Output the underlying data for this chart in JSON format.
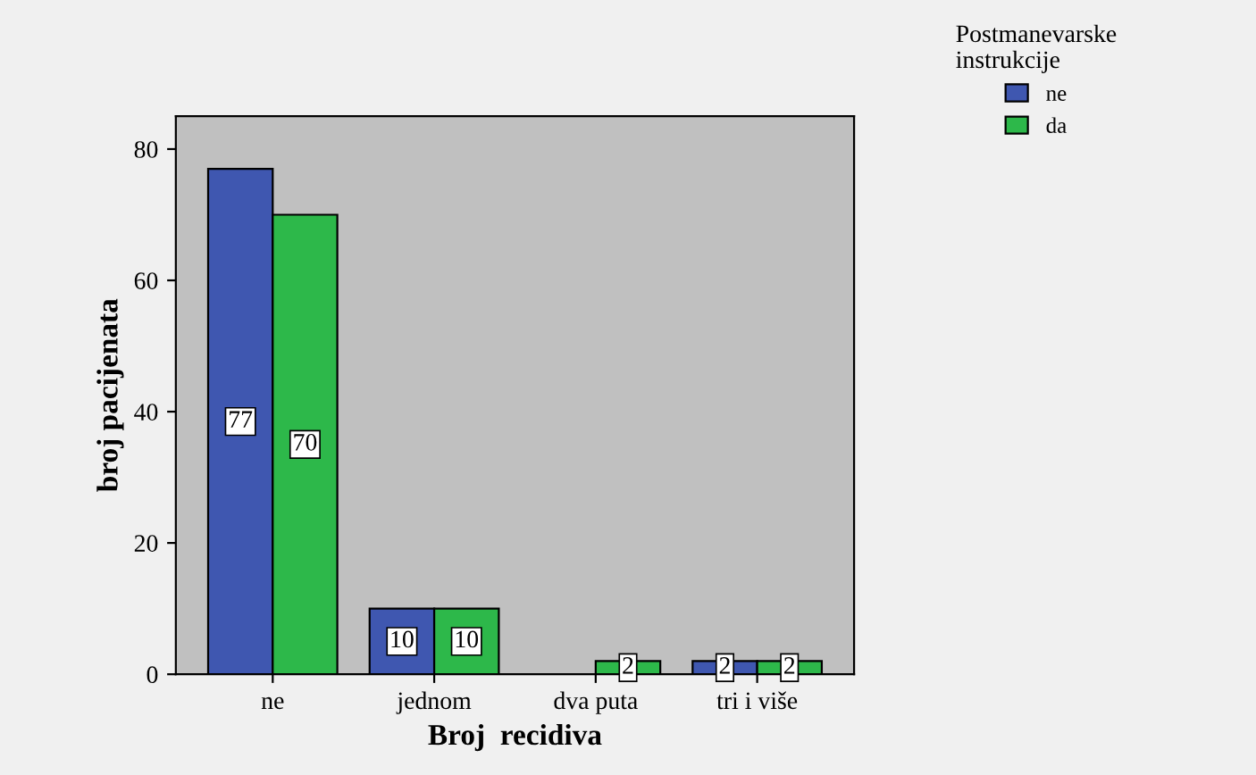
{
  "chart_data": {
    "type": "bar",
    "xlabel": "Broj  recidiva",
    "ylabel": "broj pacijenata",
    "legend_title": "Postmanevarske\ninstrukcije",
    "categories": [
      "ne",
      "jednom",
      "dva puta",
      "tri i više"
    ],
    "series": [
      {
        "name": "ne",
        "color": "#3f57b0",
        "values": [
          77,
          10,
          null,
          2
        ]
      },
      {
        "name": "da",
        "color": "#2db84a",
        "values": [
          70,
          10,
          2,
          2
        ]
      }
    ],
    "ylim": [
      0,
      85
    ],
    "yticks": [
      0,
      20,
      40,
      60,
      80
    ],
    "data_labels": true,
    "legend": "top right",
    "grid": false
  }
}
